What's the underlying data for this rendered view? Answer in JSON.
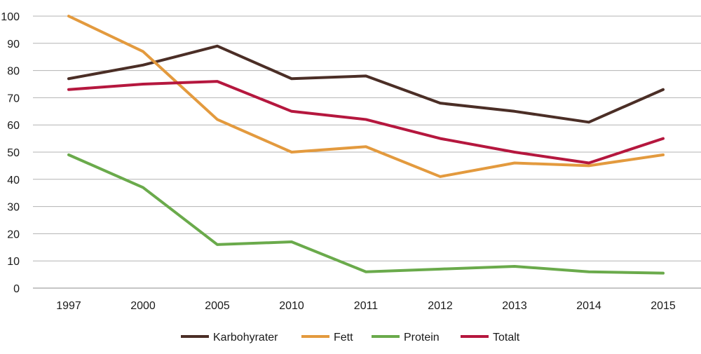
{
  "chart_data": {
    "type": "line",
    "title": "",
    "xlabel": "",
    "ylabel": "",
    "categories": [
      "1997",
      "2000",
      "2005",
      "2010",
      "2011",
      "2012",
      "2013",
      "2014",
      "2015"
    ],
    "ylim": [
      0,
      100
    ],
    "yticks": [
      0,
      10,
      20,
      30,
      40,
      50,
      60,
      70,
      80,
      90,
      100
    ],
    "grid": true,
    "legend_position": "bottom",
    "series": [
      {
        "name": "Karbohyrater",
        "color": "#4b2e26",
        "values": [
          77,
          82,
          89,
          77,
          78,
          68,
          65,
          61,
          73
        ]
      },
      {
        "name": "Fett",
        "color": "#e39a3e",
        "values": [
          100,
          87,
          62,
          50,
          52,
          41,
          46,
          45,
          49
        ]
      },
      {
        "name": "Protein",
        "color": "#6aaa4b",
        "values": [
          49,
          37,
          16,
          17,
          6,
          7,
          8,
          6,
          5.5
        ]
      },
      {
        "name": "Totalt",
        "color": "#b5173e",
        "values": [
          73,
          75,
          76,
          65,
          62,
          55,
          50,
          46,
          55
        ]
      }
    ]
  }
}
